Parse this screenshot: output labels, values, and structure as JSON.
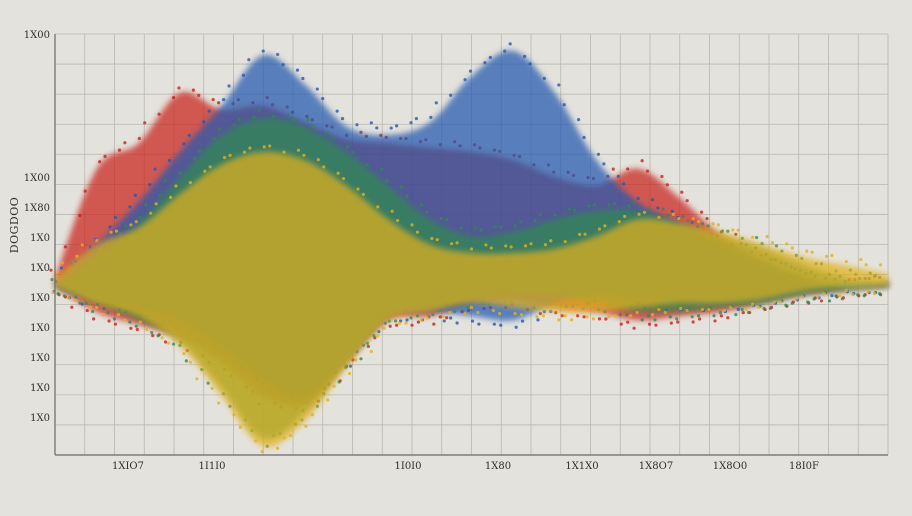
{
  "chart_data": {
    "type": "area",
    "title": "",
    "xlabel": "",
    "ylabel": "DOGDOO",
    "grid": true,
    "legend": "none",
    "x_tick_labels": [
      "",
      "1XIO7",
      "1I1I0",
      "1I0I0",
      "1X80",
      "1X1X0",
      "1X8O7",
      "1X8O0",
      "18I0F"
    ],
    "y_tick_labels": [
      "",
      "1X0",
      "1X0",
      "1X0",
      "1X0",
      "1X0",
      "1X0",
      "1X0",
      "1X80",
      "1X00"
    ],
    "y_top_label": "1X00",
    "ylim": [
      0,
      10
    ],
    "x": [
      0,
      1,
      2,
      3,
      4,
      5,
      6,
      7,
      8,
      9,
      10,
      11,
      12,
      13,
      14,
      15,
      16,
      17,
      18,
      19,
      20
    ],
    "series": [
      {
        "color": "#c8201c",
        "upper": [
          4.2,
          6.8,
          7.4,
          8.6,
          8.2,
          8.3,
          7.9,
          7.5,
          7.4,
          7.3,
          7.2,
          7.0,
          6.6,
          6.4,
          6.8,
          6.1,
          5.2,
          4.6,
          4.2,
          4.0,
          4.1
        ],
        "lower": [
          4.0,
          3.4,
          3.1,
          2.8,
          2.2,
          1.4,
          1.2,
          2.2,
          3.2,
          3.3,
          3.6,
          3.7,
          3.5,
          3.4,
          3.2,
          3.3,
          3.4,
          3.6,
          3.8,
          3.9,
          4.0
        ]
      },
      {
        "color": "#2458b0",
        "upper": [
          4.0,
          5.0,
          6.0,
          7.2,
          8.3,
          9.5,
          8.8,
          7.8,
          7.6,
          7.9,
          9.0,
          9.6,
          8.6,
          7.0,
          6.0,
          5.5,
          5.0,
          4.6,
          4.2,
          4.0,
          4.1
        ],
        "lower": [
          4.0,
          3.7,
          3.5,
          3.2,
          2.6,
          1.8,
          1.4,
          2.3,
          3.3,
          3.4,
          3.3,
          3.2,
          3.6,
          3.8,
          3.7,
          3.6,
          3.6,
          3.7,
          3.9,
          4.0,
          4.0
        ]
      },
      {
        "color": "#2f8a50",
        "upper": [
          4.0,
          4.7,
          5.5,
          6.6,
          7.6,
          8.0,
          7.8,
          7.2,
          6.4,
          5.6,
          5.2,
          5.3,
          5.6,
          5.8,
          5.8,
          5.5,
          5.2,
          4.9,
          4.5,
          4.2,
          4.1
        ],
        "lower": [
          4.0,
          3.6,
          3.2,
          2.7,
          1.6,
          0.4,
          1.0,
          2.2,
          3.3,
          3.5,
          3.7,
          3.8,
          3.8,
          3.6,
          3.4,
          3.4,
          3.5,
          3.6,
          3.8,
          3.9,
          4.0
        ]
      },
      {
        "color": "#e2b21c",
        "upper": [
          4.2,
          5.0,
          5.4,
          6.2,
          6.9,
          7.2,
          7.0,
          6.4,
          5.6,
          5.0,
          4.8,
          4.8,
          4.9,
          5.2,
          5.6,
          5.5,
          5.3,
          5.0,
          4.7,
          4.5,
          4.3
        ],
        "lower": [
          4.0,
          3.6,
          3.3,
          2.6,
          1.4,
          0.2,
          0.8,
          2.1,
          3.2,
          3.4,
          3.6,
          3.5,
          3.4,
          3.4,
          3.5,
          3.6,
          3.6,
          3.7,
          3.9,
          4.0,
          4.0
        ]
      }
    ]
  }
}
